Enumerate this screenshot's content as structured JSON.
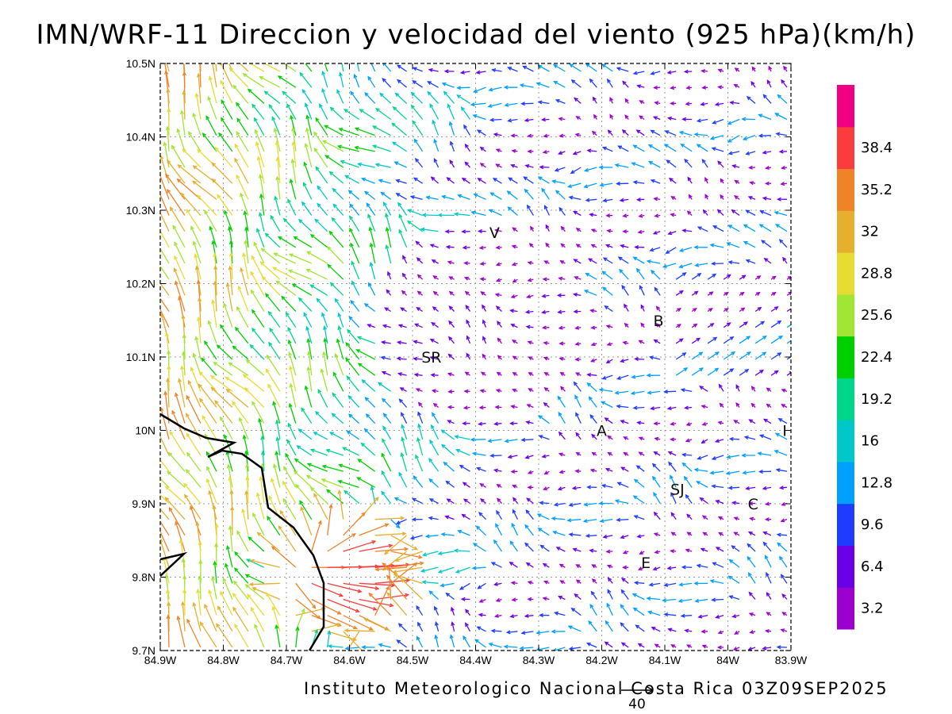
{
  "title": "IMN/WRF-11 Direccion y velocidad del viento (925 hPa)(km/h)",
  "footer": "Instituto Meteorologico Nacional Costa Rica 03Z09SEP2025",
  "reference_vector": {
    "label": "40",
    "speed": 40
  },
  "map": {
    "lon_range": [
      -84.9,
      -83.9
    ],
    "lat_range": [
      9.7,
      10.5
    ],
    "lon_ticks": [
      "84.9W",
      "84.8W",
      "84.7W",
      "84.6W",
      "84.5W",
      "84.4W",
      "84.3W",
      "84.2W",
      "84.1W",
      "84W",
      "83.9W"
    ],
    "lat_ticks": [
      "9.7N",
      "9.8N",
      "9.9N",
      "10N",
      "10.1N",
      "10.2N",
      "10.3N",
      "10.4N",
      "10.5N"
    ],
    "grid": "dotted",
    "coastline_color": "#000000",
    "places": [
      {
        "label": "V",
        "lon": -84.37,
        "lat": 10.27
      },
      {
        "label": "B",
        "lon": -84.11,
        "lat": 10.15
      },
      {
        "label": "SR",
        "lon": -84.47,
        "lat": 10.1
      },
      {
        "label": "A",
        "lon": -84.2,
        "lat": 10.0
      },
      {
        "label": "I",
        "lon": -83.91,
        "lat": 10.0
      },
      {
        "label": "SJ",
        "lon": -84.08,
        "lat": 9.92
      },
      {
        "label": "C",
        "lon": -83.96,
        "lat": 9.9
      },
      {
        "label": "E",
        "lon": -84.13,
        "lat": 9.82
      }
    ]
  },
  "colorbar": {
    "labels": [
      "3.2",
      "6.4",
      "9.6",
      "12.8",
      "16",
      "19.2",
      "22.4",
      "25.6",
      "28.8",
      "32",
      "35.2",
      "38.4"
    ],
    "colors": [
      "#9b00cf",
      "#6a00e8",
      "#1e3cff",
      "#00a0ff",
      "#00c8c8",
      "#00d68a",
      "#00d000",
      "#a0e632",
      "#e6dc32",
      "#e6af2d",
      "#f08228",
      "#fa3c3c",
      "#f00082"
    ]
  }
}
